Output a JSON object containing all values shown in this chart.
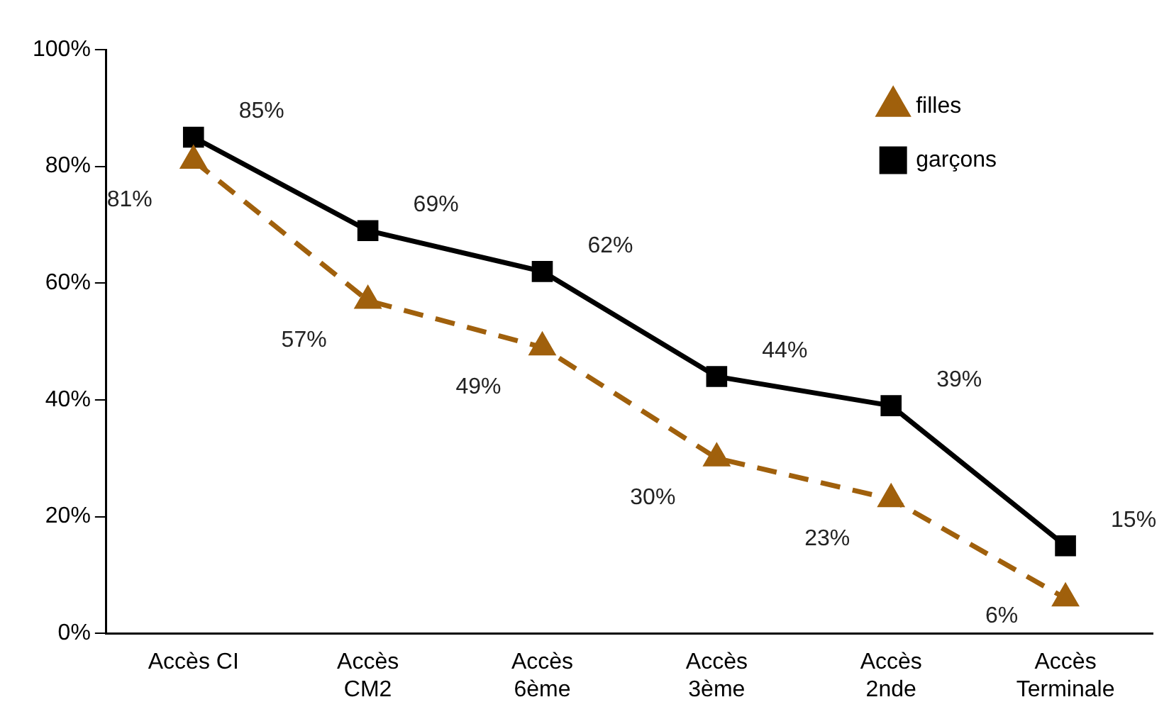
{
  "chart_data": {
    "type": "line",
    "categories": [
      "Accès CI",
      "Accès\nCM2",
      "Accès\n6ème",
      "Accès\n3ème",
      "Accès\n2nde",
      "Accès\nTerminale"
    ],
    "series": [
      {
        "name": "filles",
        "color": "#a0600c",
        "values": [
          81,
          57,
          49,
          30,
          23,
          6
        ],
        "value_labels": [
          "81%",
          "57%",
          "49%",
          "30%",
          "23%",
          "6%"
        ],
        "marker": "triangle",
        "line_style": "dashed"
      },
      {
        "name": "garçons",
        "color": "#000000",
        "values": [
          85,
          69,
          62,
          44,
          39,
          15
        ],
        "value_labels": [
          "85%",
          "69%",
          "62%",
          "44%",
          "39%",
          "15%"
        ],
        "marker": "square",
        "line_style": "solid"
      }
    ],
    "ylim": [
      0,
      100
    ],
    "yticks": [
      {
        "value": 0,
        "label": "0%"
      },
      {
        "value": 20,
        "label": "20%"
      },
      {
        "value": 40,
        "label": "40%"
      },
      {
        "value": 60,
        "label": "60%"
      },
      {
        "value": 80,
        "label": "80%"
      },
      {
        "value": 100,
        "label": "100%"
      }
    ],
    "grid": false,
    "legend": "top right"
  }
}
